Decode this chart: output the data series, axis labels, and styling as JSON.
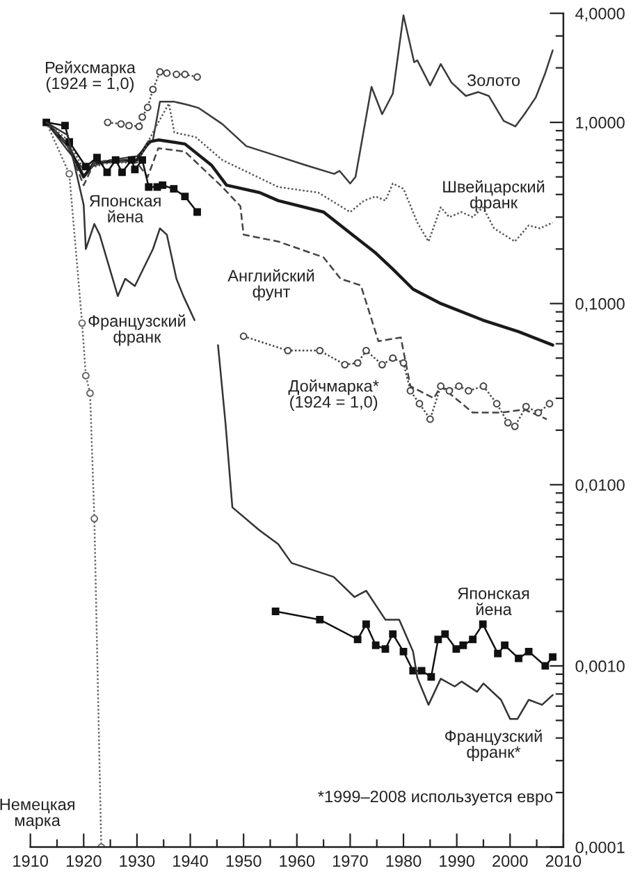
{
  "chart_data": {
    "type": "line",
    "log": "y",
    "xlim": [
      1910,
      2010
    ],
    "xticks": [
      1910,
      {
        "value": 1915,
        "label": null
      },
      1920,
      {
        "value": 1925,
        "label": null
      },
      1930,
      {
        "value": 1935,
        "label": null
      },
      1940,
      {
        "value": 1945,
        "label": null
      },
      1950,
      {
        "value": 1955,
        "label": null
      },
      1960,
      {
        "value": 1965,
        "label": null
      },
      1970,
      {
        "value": 1975,
        "label": null
      },
      1980,
      {
        "value": 1985,
        "label": null
      },
      1990,
      {
        "value": 1995,
        "label": null
      },
      2000,
      {
        "value": 2005,
        "label": null
      },
      2010
    ],
    "ylim": [
      0.0001,
      4
    ],
    "yticks": [
      {
        "value": 0.0001,
        "label": "0,0001"
      },
      {
        "value": 0.0002,
        "label": null
      },
      {
        "value": 0.0003,
        "label": null
      },
      {
        "value": 0.0004,
        "label": null
      },
      {
        "value": 0.0005,
        "label": null
      },
      {
        "value": 0.0006,
        "label": null
      },
      {
        "value": 0.0007,
        "label": null
      },
      {
        "value": 0.0008,
        "label": null
      },
      {
        "value": 0.0009,
        "label": null
      },
      {
        "value": 0.001,
        "label": "0,0010"
      },
      {
        "value": 0.002,
        "label": null
      },
      {
        "value": 0.003,
        "label": null
      },
      {
        "value": 0.004,
        "label": null
      },
      {
        "value": 0.005,
        "label": null
      },
      {
        "value": 0.006,
        "label": null
      },
      {
        "value": 0.007,
        "label": null
      },
      {
        "value": 0.008,
        "label": null
      },
      {
        "value": 0.009,
        "label": null
      },
      {
        "value": 0.01,
        "label": "0,0100"
      },
      {
        "value": 0.02,
        "label": null
      },
      {
        "value": 0.03,
        "label": null
      },
      {
        "value": 0.04,
        "label": null
      },
      {
        "value": 0.05,
        "label": null
      },
      {
        "value": 0.06,
        "label": null
      },
      {
        "value": 0.07,
        "label": null
      },
      {
        "value": 0.08,
        "label": null
      },
      {
        "value": 0.09,
        "label": null
      },
      {
        "value": 0.1,
        "label": "0,1000"
      },
      {
        "value": 0.2,
        "label": null
      },
      {
        "value": 0.3,
        "label": null
      },
      {
        "value": 0.4,
        "label": null
      },
      {
        "value": 0.5,
        "label": null
      },
      {
        "value": 0.6,
        "label": null
      },
      {
        "value": 0.7,
        "label": null
      },
      {
        "value": 0.8,
        "label": null
      },
      {
        "value": 0.9,
        "label": null
      },
      {
        "value": 1,
        "label": "1,0000"
      },
      {
        "value": 2,
        "label": null
      },
      {
        "value": 3,
        "label": null
      },
      {
        "value": 4,
        "label": "4,0000"
      }
    ],
    "grid": false,
    "series": [
      {
        "name": "Золото",
        "color": "#3a3a3a",
        "line_style": "solid",
        "marker": "none",
        "x": [
          1913,
          1917,
          1920,
          1925,
          1930,
          1933,
          1934.3,
          1937,
          1939.5,
          1941.6,
          1946,
          1950.5,
          1956.5,
          1961.7,
          1967,
          1968,
          1970,
          1971,
          1974,
          1976,
          1978,
          1980,
          1982,
          1982.6,
          1985,
          1987,
          1989,
          1991.7,
          1994,
          1996,
          1998.8,
          2001,
          2002.7,
          2004.8,
          2006.6,
          2008
        ],
        "values": [
          1.0,
          0.7,
          0.55,
          0.62,
          0.65,
          0.8,
          1.3,
          1.3,
          1.25,
          1.2,
          0.98,
          0.74,
          0.65,
          0.58,
          0.52,
          0.54,
          0.46,
          0.5,
          1.57,
          1.11,
          1.44,
          3.9,
          2.15,
          2.2,
          1.6,
          2.1,
          1.66,
          1.4,
          1.47,
          1.4,
          1.02,
          0.95,
          1.11,
          1.37,
          1.87,
          2.5
        ]
      },
      {
        "color": "#1a1a1a",
        "line_style": "solid",
        "marker": "none",
        "x": [
          1913,
          1917,
          1920,
          1922,
          1930,
          1932.2,
          1934,
          1939,
          1944,
          1946.8,
          1953,
          1956.5,
          1965,
          1974.8,
          1978,
          1981.8,
          1987,
          1994.9,
          2001.6,
          2008
        ],
        "values": [
          1.0,
          0.75,
          0.5,
          0.6,
          0.62,
          0.78,
          0.8,
          0.76,
          0.58,
          0.45,
          0.41,
          0.37,
          0.32,
          0.19,
          0.155,
          0.12,
          0.1,
          0.081,
          0.07,
          0.059
        ]
      },
      {
        "name": "Швейцарский\nфранк",
        "color": "#555555",
        "line_style": "dotted",
        "marker": "none",
        "x": [
          1913,
          1917,
          1920,
          1925,
          1930,
          1934,
          1936,
          1937,
          1941,
          1946,
          1956.5,
          1964,
          1970,
          1972.6,
          1974.8,
          1976.6,
          1978,
          1980,
          1982.6,
          1984.7,
          1987,
          1988.6,
          1990.9,
          1993,
          1994.9,
          1997,
          2000.9,
          2003.5,
          2005.6,
          2008
        ],
        "values": [
          1.0,
          0.8,
          0.55,
          0.6,
          0.6,
          1.0,
          1.27,
          0.88,
          0.83,
          0.62,
          0.44,
          0.41,
          0.32,
          0.37,
          0.39,
          0.37,
          0.46,
          0.43,
          0.28,
          0.22,
          0.34,
          0.3,
          0.32,
          0.3,
          0.34,
          0.26,
          0.22,
          0.27,
          0.26,
          0.28
        ]
      },
      {
        "name": "Английский\nфунт",
        "color": "#444444",
        "line_style": "dashed",
        "marker": "none",
        "x": [
          1913,
          1917,
          1920,
          1922,
          1925,
          1930,
          1932,
          1934,
          1939,
          1946,
          1949.4,
          1950,
          1956.5,
          1965,
          1968.2,
          1972,
          1975.3,
          1979.5,
          1981.3,
          1985.7,
          1987,
          1993,
          1998.2,
          2002.7,
          2006.9
        ],
        "values": [
          1.0,
          0.75,
          0.45,
          0.6,
          0.62,
          0.6,
          0.5,
          0.72,
          0.69,
          0.44,
          0.345,
          0.24,
          0.22,
          0.18,
          0.137,
          0.126,
          0.062,
          0.065,
          0.035,
          0.03,
          0.035,
          0.025,
          0.025,
          0.026,
          0.023
        ]
      },
      {
        "name": "Рейхсмарка\n(1924 = 1,0)",
        "color": "#444444",
        "line_style": "dotted",
        "marker": "circle",
        "x": [
          1924.5,
          1927,
          1928.5,
          1930.4,
          1931,
          1932,
          1933,
          1934.3,
          1935.6,
          1937.4,
          1939,
          1941.3
        ],
        "values": [
          1.0,
          0.98,
          0.96,
          0.95,
          1.07,
          1.21,
          1.52,
          1.9,
          1.87,
          1.84,
          1.84,
          1.78
        ]
      },
      {
        "name": "Дойчмарка*\n(1924 = 1,0)",
        "color": "#444444",
        "line_style": "dotted",
        "marker": "circle",
        "x": [
          1950,
          1958.3,
          1964.3,
          1969,
          1971.4,
          1973,
          1976,
          1978,
          1980,
          1981.3,
          1983,
          1985,
          1987,
          1988.6,
          1990.4,
          1992.2,
          1995,
          1997.5,
          1999.6,
          2000.9,
          2003,
          2005.3,
          2007.4
        ],
        "values": [
          0.066,
          0.055,
          0.055,
          0.046,
          0.047,
          0.055,
          0.046,
          0.05,
          0.047,
          0.033,
          0.028,
          0.023,
          0.035,
          0.033,
          0.035,
          0.033,
          0.035,
          0.028,
          0.022,
          0.021,
          0.027,
          0.025,
          0.028
        ]
      },
      {
        "name": "Немецкая\nмарка",
        "color": "#666666",
        "line_style": "dotted",
        "marker": "circle",
        "x": [
          1913,
          1917.3,
          1919.7,
          1920.4,
          1921.2,
          1922,
          1923.3
        ],
        "values": [
          1.0,
          0.52,
          0.078,
          0.04,
          0.032,
          0.0065,
          0.0001
        ]
      },
      {
        "name": "Японская\nйена",
        "color": "#111111",
        "line_style": "solid",
        "marker": "square",
        "x": [
          1913,
          1916.5,
          1917.3,
          1920.4,
          1922.5,
          1924.4,
          1926,
          1927.2,
          1929,
          1929.6,
          1931,
          1932.2,
          1933.8,
          1934.8,
          1936.9,
          1939,
          1941.3
        ],
        "values": [
          1.0,
          0.96,
          0.78,
          0.57,
          0.64,
          0.53,
          0.62,
          0.53,
          0.62,
          0.55,
          0.62,
          0.44,
          0.44,
          0.45,
          0.43,
          0.39,
          0.32
        ]
      },
      {
        "name": "Японская\nйена",
        "color": "#111111",
        "line_style": "solid",
        "marker": "square",
        "x": [
          1956,
          1964.3,
          1971.4,
          1973,
          1974.8,
          1976.6,
          1978,
          1980,
          1981.8,
          1983.4,
          1985.2,
          1986.5,
          1987.8,
          1989.9,
          1991.2,
          1993,
          1994.9,
          1997.7,
          1999,
          2001.6,
          2003.5,
          2006.6,
          2008
        ],
        "values": [
          0.002,
          0.0018,
          0.0014,
          0.0017,
          0.0013,
          0.00124,
          0.0015,
          0.0012,
          0.00094,
          0.00094,
          0.00087,
          0.0014,
          0.0015,
          0.00124,
          0.0013,
          0.0014,
          0.0017,
          0.00117,
          0.0013,
          0.0011,
          0.0012,
          0.001,
          0.00112
        ]
      },
      {
        "name": "Французский\nфранк",
        "color": "#333333",
        "line_style": "solid",
        "marker": "none",
        "x": [
          1913,
          1917,
          1920,
          1920.4,
          1922,
          1923,
          1926.4,
          1927.8,
          1929.6,
          1933,
          1934.3,
          1935.6,
          1937.4,
          1938.7,
          1940.8
        ],
        "values": [
          1.0,
          0.85,
          0.35,
          0.2,
          0.275,
          0.24,
          0.11,
          0.137,
          0.125,
          0.2,
          0.26,
          0.24,
          0.137,
          0.11,
          0.081
        ]
      },
      {
        "name": "Французский\nфранк*",
        "color": "#333333",
        "line_style": "solid",
        "marker": "none",
        "x": [
          1945.2,
          1946.6,
          1947.9,
          1953,
          1956.5,
          1959,
          1966.9,
          1970.8,
          1973,
          1976.6,
          1979.2,
          1981.8,
          1982.6,
          1984.7,
          1987,
          1989.6,
          1990.9,
          1993.8,
          1995,
          1998.3,
          2000,
          2001.4,
          2003.5,
          2006,
          2008
        ],
        "values": [
          0.059,
          0.022,
          0.0075,
          0.0056,
          0.0047,
          0.0037,
          0.0031,
          0.0024,
          0.0026,
          0.0018,
          0.0018,
          0.0012,
          0.00086,
          0.00061,
          0.00085,
          0.00077,
          0.00082,
          0.00072,
          0.0008,
          0.00065,
          0.00051,
          0.00051,
          0.00065,
          0.00061,
          0.00069
        ]
      }
    ],
    "annotations": [
      "*1999–2008 используется евро"
    ]
  }
}
